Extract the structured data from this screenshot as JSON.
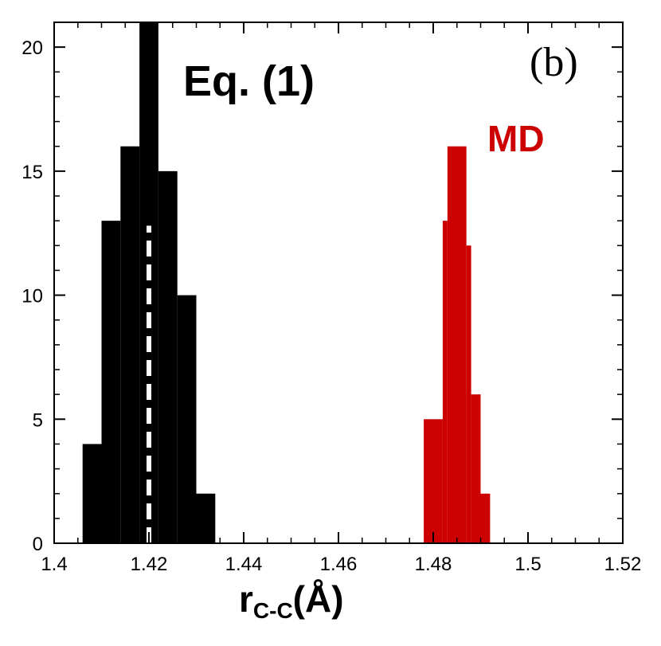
{
  "chart_data": {
    "type": "bar",
    "title": "",
    "panel_label": "(b)",
    "xlabel": {
      "main": "r",
      "subscript": "C-C",
      "suffix": "(Å)"
    },
    "ylabel": "",
    "xlim": [
      1.4,
      1.52
    ],
    "ylim": [
      0,
      21
    ],
    "x_ticks": [
      1.4,
      1.42,
      1.44,
      1.46,
      1.48,
      1.5,
      1.52
    ],
    "x_tick_labels": [
      "1.4",
      "1.42",
      "1.44",
      "1.46",
      "1.48",
      "1.5",
      "1.52"
    ],
    "y_ticks": [
      0,
      5,
      10,
      15,
      20
    ],
    "y_tick_labels": [
      "0",
      "5",
      "10",
      "15",
      "20"
    ],
    "series": [
      {
        "name": "Eq. (1)",
        "color": "#000000",
        "bins": [
          {
            "x0": 1.406,
            "x1": 1.41,
            "count": 4
          },
          {
            "x0": 1.41,
            "x1": 1.414,
            "count": 13
          },
          {
            "x0": 1.414,
            "x1": 1.418,
            "count": 16
          },
          {
            "x0": 1.418,
            "x1": 1.422,
            "count": 21
          },
          {
            "x0": 1.422,
            "x1": 1.426,
            "count": 15
          },
          {
            "x0": 1.426,
            "x1": 1.43,
            "count": 10
          },
          {
            "x0": 1.43,
            "x1": 1.434,
            "count": 2
          }
        ]
      },
      {
        "name": "MD",
        "color": "#cc0000",
        "bins": [
          {
            "x0": 1.478,
            "x1": 1.482,
            "count": 5
          },
          {
            "x0": 1.482,
            "x1": 1.483,
            "count": 13
          },
          {
            "x0": 1.483,
            "x1": 1.487,
            "count": 16
          },
          {
            "x0": 1.487,
            "x1": 1.488,
            "count": 12
          },
          {
            "x0": 1.488,
            "x1": 1.49,
            "count": 6
          },
          {
            "x0": 1.49,
            "x1": 1.492,
            "count": 2
          }
        ]
      }
    ],
    "reference_line": {
      "x": 1.42,
      "y_max": 12.8,
      "style": "dashed",
      "color": "#ffffff"
    },
    "annotations": [
      {
        "text": "Eq. (1)",
        "color": "#000000"
      },
      {
        "text": "MD",
        "color": "#cc0000"
      }
    ]
  }
}
